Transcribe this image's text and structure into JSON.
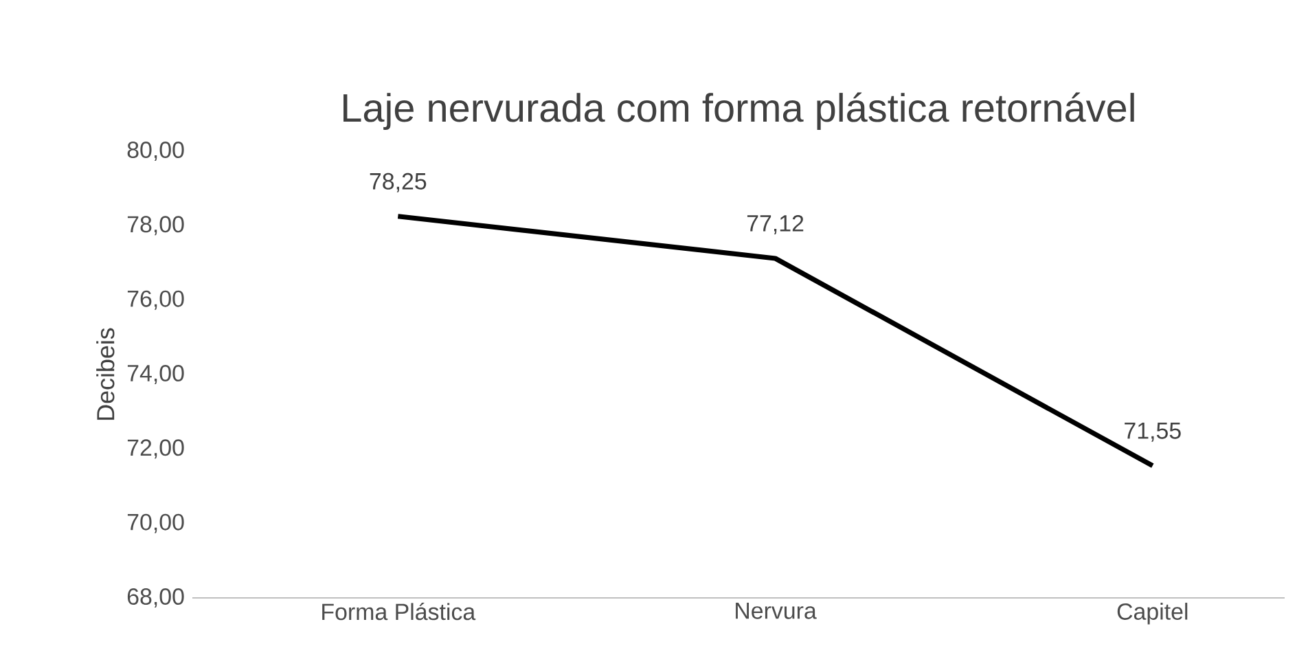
{
  "chart_data": {
    "type": "line",
    "title": "Laje nervurada com forma plástica retornável",
    "ylabel": "Decibeis",
    "categories": [
      "Forma Plástica",
      "Nervura",
      "Capitel"
    ],
    "series": [
      {
        "color": "#000000",
        "values": [
          78.25,
          77.12,
          71.55
        ],
        "value_labels": [
          "78,25",
          "77,12",
          "71,55"
        ]
      }
    ],
    "ylim": [
      68,
      80
    ],
    "yticks": [
      {
        "value": 68,
        "label": "68,00"
      },
      {
        "value": 70,
        "label": "70,00"
      },
      {
        "value": 72,
        "label": "72,00"
      },
      {
        "value": 74,
        "label": "74,00"
      },
      {
        "value": 76,
        "label": "76,00"
      },
      {
        "value": 78,
        "label": "78,00"
      },
      {
        "value": 80,
        "label": "80,00"
      }
    ],
    "grid": false
  }
}
